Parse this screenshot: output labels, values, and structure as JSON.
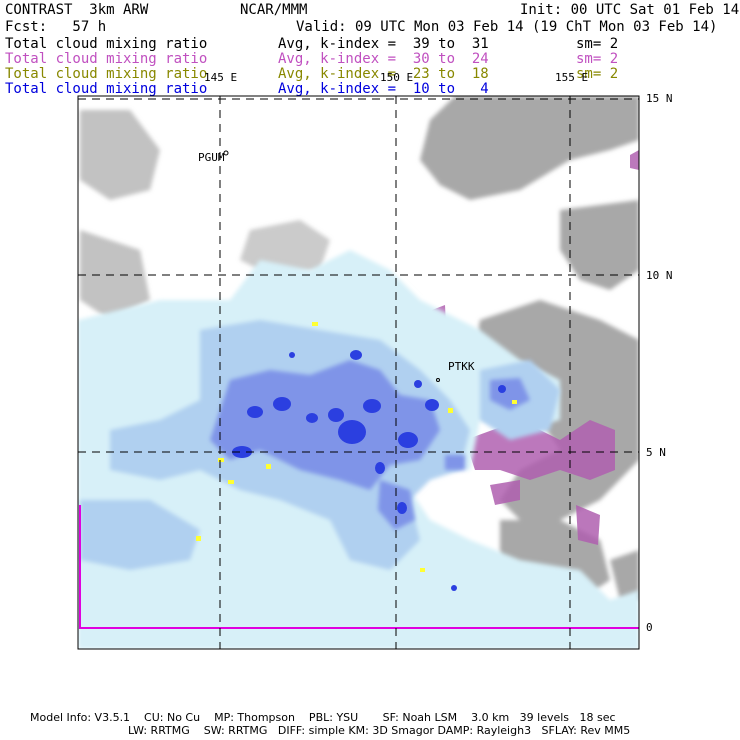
{
  "header": {
    "model": "CONTRAST  3km ARW",
    "org": "NCAR/MMM",
    "init": "Init: 00 UTC Sat 01 Feb 14",
    "fcst": "Fcst:   57 h",
    "valid": "Valid: 09 UTC Mon 03 Feb 14 (19 ChT Mon 03 Feb 14)"
  },
  "layers": [
    {
      "name": "Total cloud mixing ratio",
      "range": "Avg, k-index =  39 to  31",
      "sm": "sm= 2",
      "color": "#000000"
    },
    {
      "name": "Total cloud mixing ratio",
      "range": "Avg, k-index =  30 to  24",
      "sm": "sm= 2",
      "color": "#c050c0"
    },
    {
      "name": "Total cloud mixing ratio",
      "range": "Avg, k-index =  23 to  18",
      "sm": "sm= 2",
      "color": "#888800"
    },
    {
      "name": "Total cloud mixing ratio",
      "range": "Avg, k-index =  10 to   4",
      "sm": "",
      "color": "#0000dd"
    }
  ],
  "map": {
    "lon_labels": [
      "145 E",
      "150 E",
      "155 E"
    ],
    "lat_labels": [
      "15 N",
      "10 N",
      "5 N",
      "0"
    ],
    "stations": [
      "PGUM",
      "PTKK"
    ]
  },
  "footer": {
    "line1": "Model Info: V3.5.1    CU: No Cu    MP: Thompson    PBL: YSU       SF: Noah LSM    3.0 km   39 levels   18 sec",
    "line2": "LW: RRTMG    SW: RRTMG   DIFF: simple KM: 3D Smagor DAMP: Rayleigh3   SFLAY: Rev MM5"
  },
  "colors": {
    "cloud_light": "#d7f0f8",
    "cloud_mid": "#b0d0f0",
    "cloud_dark": "#7f94e8",
    "cloud_core": "#2b3fe0",
    "gray_layer": "#a8a8a8",
    "purple_layer": "#b060b0",
    "yellow_layer": "#ffff33",
    "magenta_line": "#e000e0"
  }
}
